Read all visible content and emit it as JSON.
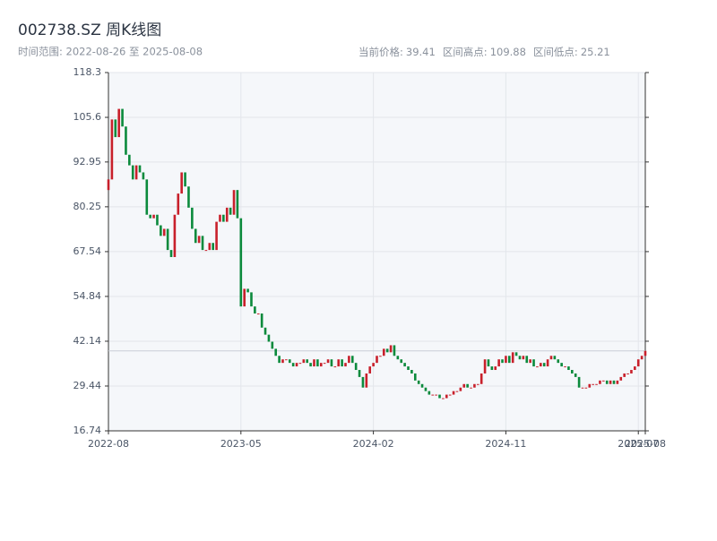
{
  "chart_data": {
    "type": "candlestick",
    "title": "002738.SZ 周K线图",
    "time_range": "时间范围: 2022-08-26 至 2025-08-08",
    "stats": [
      {
        "label": "当前价格:",
        "value": 39.41
      },
      {
        "label": "区间高点:",
        "value": 109.88
      },
      {
        "label": "区间低点:",
        "value": 25.21
      }
    ],
    "up_color": "#c8202b",
    "down_color": "#0b8a3c",
    "grid": true,
    "xlim": [
      0,
      154
    ],
    "xticks": [
      {
        "value": 0,
        "label": "2022-08"
      },
      {
        "value": 38,
        "label": "2023-05"
      },
      {
        "value": 76,
        "label": "2024-02"
      },
      {
        "value": 114,
        "label": "2024-11"
      },
      {
        "value": 152,
        "label": "2025-07"
      },
      {
        "value": 154,
        "label": "2025-08"
      }
    ],
    "ylim": [
      16.74,
      118.3
    ],
    "yticks": [
      16.74,
      29.44,
      42.14,
      54.84,
      67.54,
      80.25,
      92.95,
      105.6,
      118.3
    ],
    "open": [
      85,
      88,
      105,
      100,
      108,
      103,
      95,
      92,
      88,
      92,
      90,
      88,
      78,
      77,
      78,
      75,
      72,
      74,
      68,
      66,
      78,
      84,
      90,
      86,
      80,
      74,
      70,
      72,
      68,
      68,
      70,
      68,
      76,
      78,
      76,
      80,
      78,
      85,
      77,
      52,
      57,
      56,
      52,
      50,
      50,
      46,
      44,
      42,
      40,
      38,
      36,
      37,
      37,
      36,
      35,
      36,
      36,
      37,
      36,
      35,
      37,
      35,
      36,
      36,
      37,
      35,
      35,
      37,
      35,
      36,
      38,
      36,
      34,
      32,
      29,
      33,
      35,
      36,
      38,
      38,
      40,
      39,
      41,
      38,
      37,
      36,
      35,
      34,
      33,
      31,
      30,
      29,
      28,
      27,
      27,
      27,
      26,
      26,
      27,
      27,
      28,
      28,
      29,
      30,
      29,
      29,
      30,
      30,
      33,
      37,
      35,
      34,
      35,
      37,
      36,
      38,
      36,
      39,
      38,
      37,
      38,
      36,
      37,
      35,
      35,
      36,
      35,
      37,
      38,
      37,
      36,
      35,
      35,
      34,
      33,
      32,
      29,
      29,
      29,
      30,
      30,
      30,
      31,
      31,
      30,
      31,
      30,
      31,
      32,
      33,
      33,
      34,
      35,
      37,
      38
    ],
    "close": [
      88,
      105,
      100,
      108,
      103,
      95,
      92,
      88,
      92,
      90,
      88,
      78,
      77,
      78,
      75,
      72,
      74,
      68,
      66,
      78,
      84,
      90,
      86,
      80,
      74,
      70,
      72,
      68,
      68,
      70,
      68,
      76,
      78,
      76,
      80,
      78,
      85,
      77,
      52,
      57,
      56,
      52,
      50,
      50,
      46,
      44,
      42,
      40,
      38,
      36,
      37,
      37,
      36,
      35,
      36,
      36,
      37,
      36,
      35,
      37,
      35,
      36,
      36,
      37,
      35,
      35,
      37,
      35,
      36,
      38,
      36,
      34,
      32,
      29,
      33,
      35,
      36,
      38,
      38,
      40,
      39,
      41,
      38,
      37,
      36,
      35,
      34,
      33,
      31,
      30,
      29,
      28,
      27,
      27,
      27,
      26,
      26,
      27,
      27,
      28,
      28,
      29,
      30,
      29,
      29,
      30,
      30,
      33,
      37,
      35,
      34,
      35,
      37,
      36,
      38,
      36,
      39,
      38,
      37,
      38,
      36,
      37,
      35,
      35,
      36,
      35,
      37,
      38,
      37,
      36,
      35,
      35,
      34,
      33,
      32,
      29,
      29,
      29,
      30,
      30,
      30,
      31,
      31,
      30,
      31,
      30,
      31,
      32,
      33,
      33,
      34,
      35,
      37,
      38,
      39.41
    ]
  }
}
